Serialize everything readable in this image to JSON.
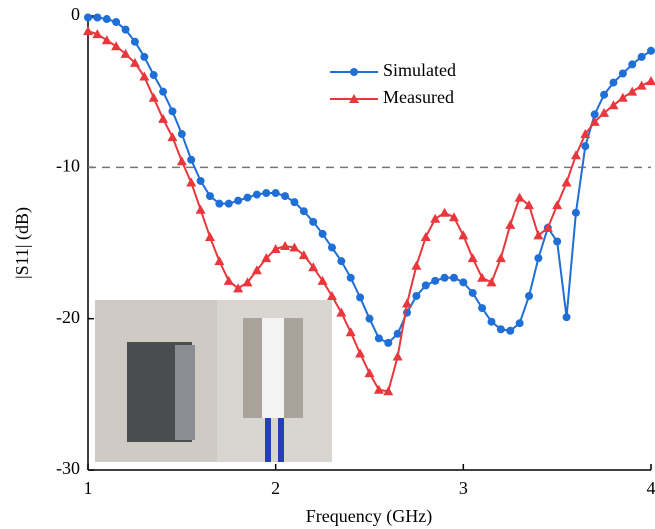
{
  "chart_data": {
    "type": "line",
    "x_label": "Frequency (GHz)",
    "y_label": "|S11| (dB)",
    "x": [
      1.0,
      1.05,
      1.1,
      1.15,
      1.2,
      1.25,
      1.3,
      1.35,
      1.4,
      1.45,
      1.5,
      1.55,
      1.6,
      1.65,
      1.7,
      1.75,
      1.8,
      1.85,
      1.9,
      1.95,
      2.0,
      2.05,
      2.1,
      2.15,
      2.2,
      2.25,
      2.3,
      2.35,
      2.4,
      2.45,
      2.5,
      2.55,
      2.6,
      2.65,
      2.7,
      2.75,
      2.8,
      2.85,
      2.9,
      2.95,
      3.0,
      3.05,
      3.1,
      3.15,
      3.2,
      3.25,
      3.3,
      3.35,
      3.4,
      3.45,
      3.5,
      3.55,
      3.6,
      3.65,
      3.7,
      3.75,
      3.8,
      3.85,
      3.9,
      3.95,
      4.0
    ],
    "series": [
      {
        "name": "Simulated",
        "color": "#1f6fd6",
        "marker": "circle",
        "values": [
          -0.1,
          -0.1,
          -0.2,
          -0.4,
          -0.9,
          -1.7,
          -2.7,
          -3.9,
          -5.0,
          -6.3,
          -7.8,
          -9.5,
          -10.9,
          -11.9,
          -12.4,
          -12.4,
          -12.2,
          -12.0,
          -11.8,
          -11.7,
          -11.7,
          -11.9,
          -12.3,
          -12.9,
          -13.6,
          -14.4,
          -15.3,
          -16.2,
          -17.3,
          -18.6,
          -20.0,
          -21.3,
          -21.6,
          -21.0,
          -19.6,
          -18.5,
          -17.8,
          -17.5,
          -17.3,
          -17.3,
          -17.6,
          -18.3,
          -19.3,
          -20.2,
          -20.7,
          -20.8,
          -20.3,
          -18.5,
          -16.0,
          -14.0,
          -14.9,
          -19.9,
          -13.0,
          -8.6,
          -6.5,
          -5.2,
          -4.4,
          -3.8,
          -3.2,
          -2.7,
          -2.3
        ]
      },
      {
        "name": "Measured",
        "color": "#e8383d",
        "marker": "triangle",
        "values": [
          -1.0,
          -1.2,
          -1.6,
          -2.0,
          -2.5,
          -3.1,
          -4.0,
          -5.4,
          -6.8,
          -8.0,
          -9.6,
          -11.0,
          -12.8,
          -14.6,
          -16.2,
          -17.5,
          -18.0,
          -17.6,
          -16.8,
          -16.0,
          -15.4,
          -15.2,
          -15.3,
          -15.8,
          -16.6,
          -17.5,
          -18.5,
          -19.6,
          -20.9,
          -22.3,
          -23.6,
          -24.7,
          -24.8,
          -22.5,
          -19.0,
          -16.5,
          -14.6,
          -13.4,
          -13.0,
          -13.3,
          -14.5,
          -16.0,
          -17.3,
          -17.6,
          -16.0,
          -13.8,
          -12.0,
          -12.5,
          -14.5,
          -14.0,
          -12.5,
          -11.0,
          -9.2,
          -7.8,
          -7.0,
          -6.4,
          -5.9,
          -5.4,
          -5.0,
          -4.6,
          -4.3
        ]
      }
    ],
    "xlim": [
      1,
      4
    ],
    "xticks": [
      1,
      2,
      3,
      4
    ],
    "ylim": [
      -30,
      0
    ],
    "yticks": [
      0,
      -10,
      -20,
      -30
    ],
    "reference_line": -10,
    "legend": "upper-right"
  }
}
